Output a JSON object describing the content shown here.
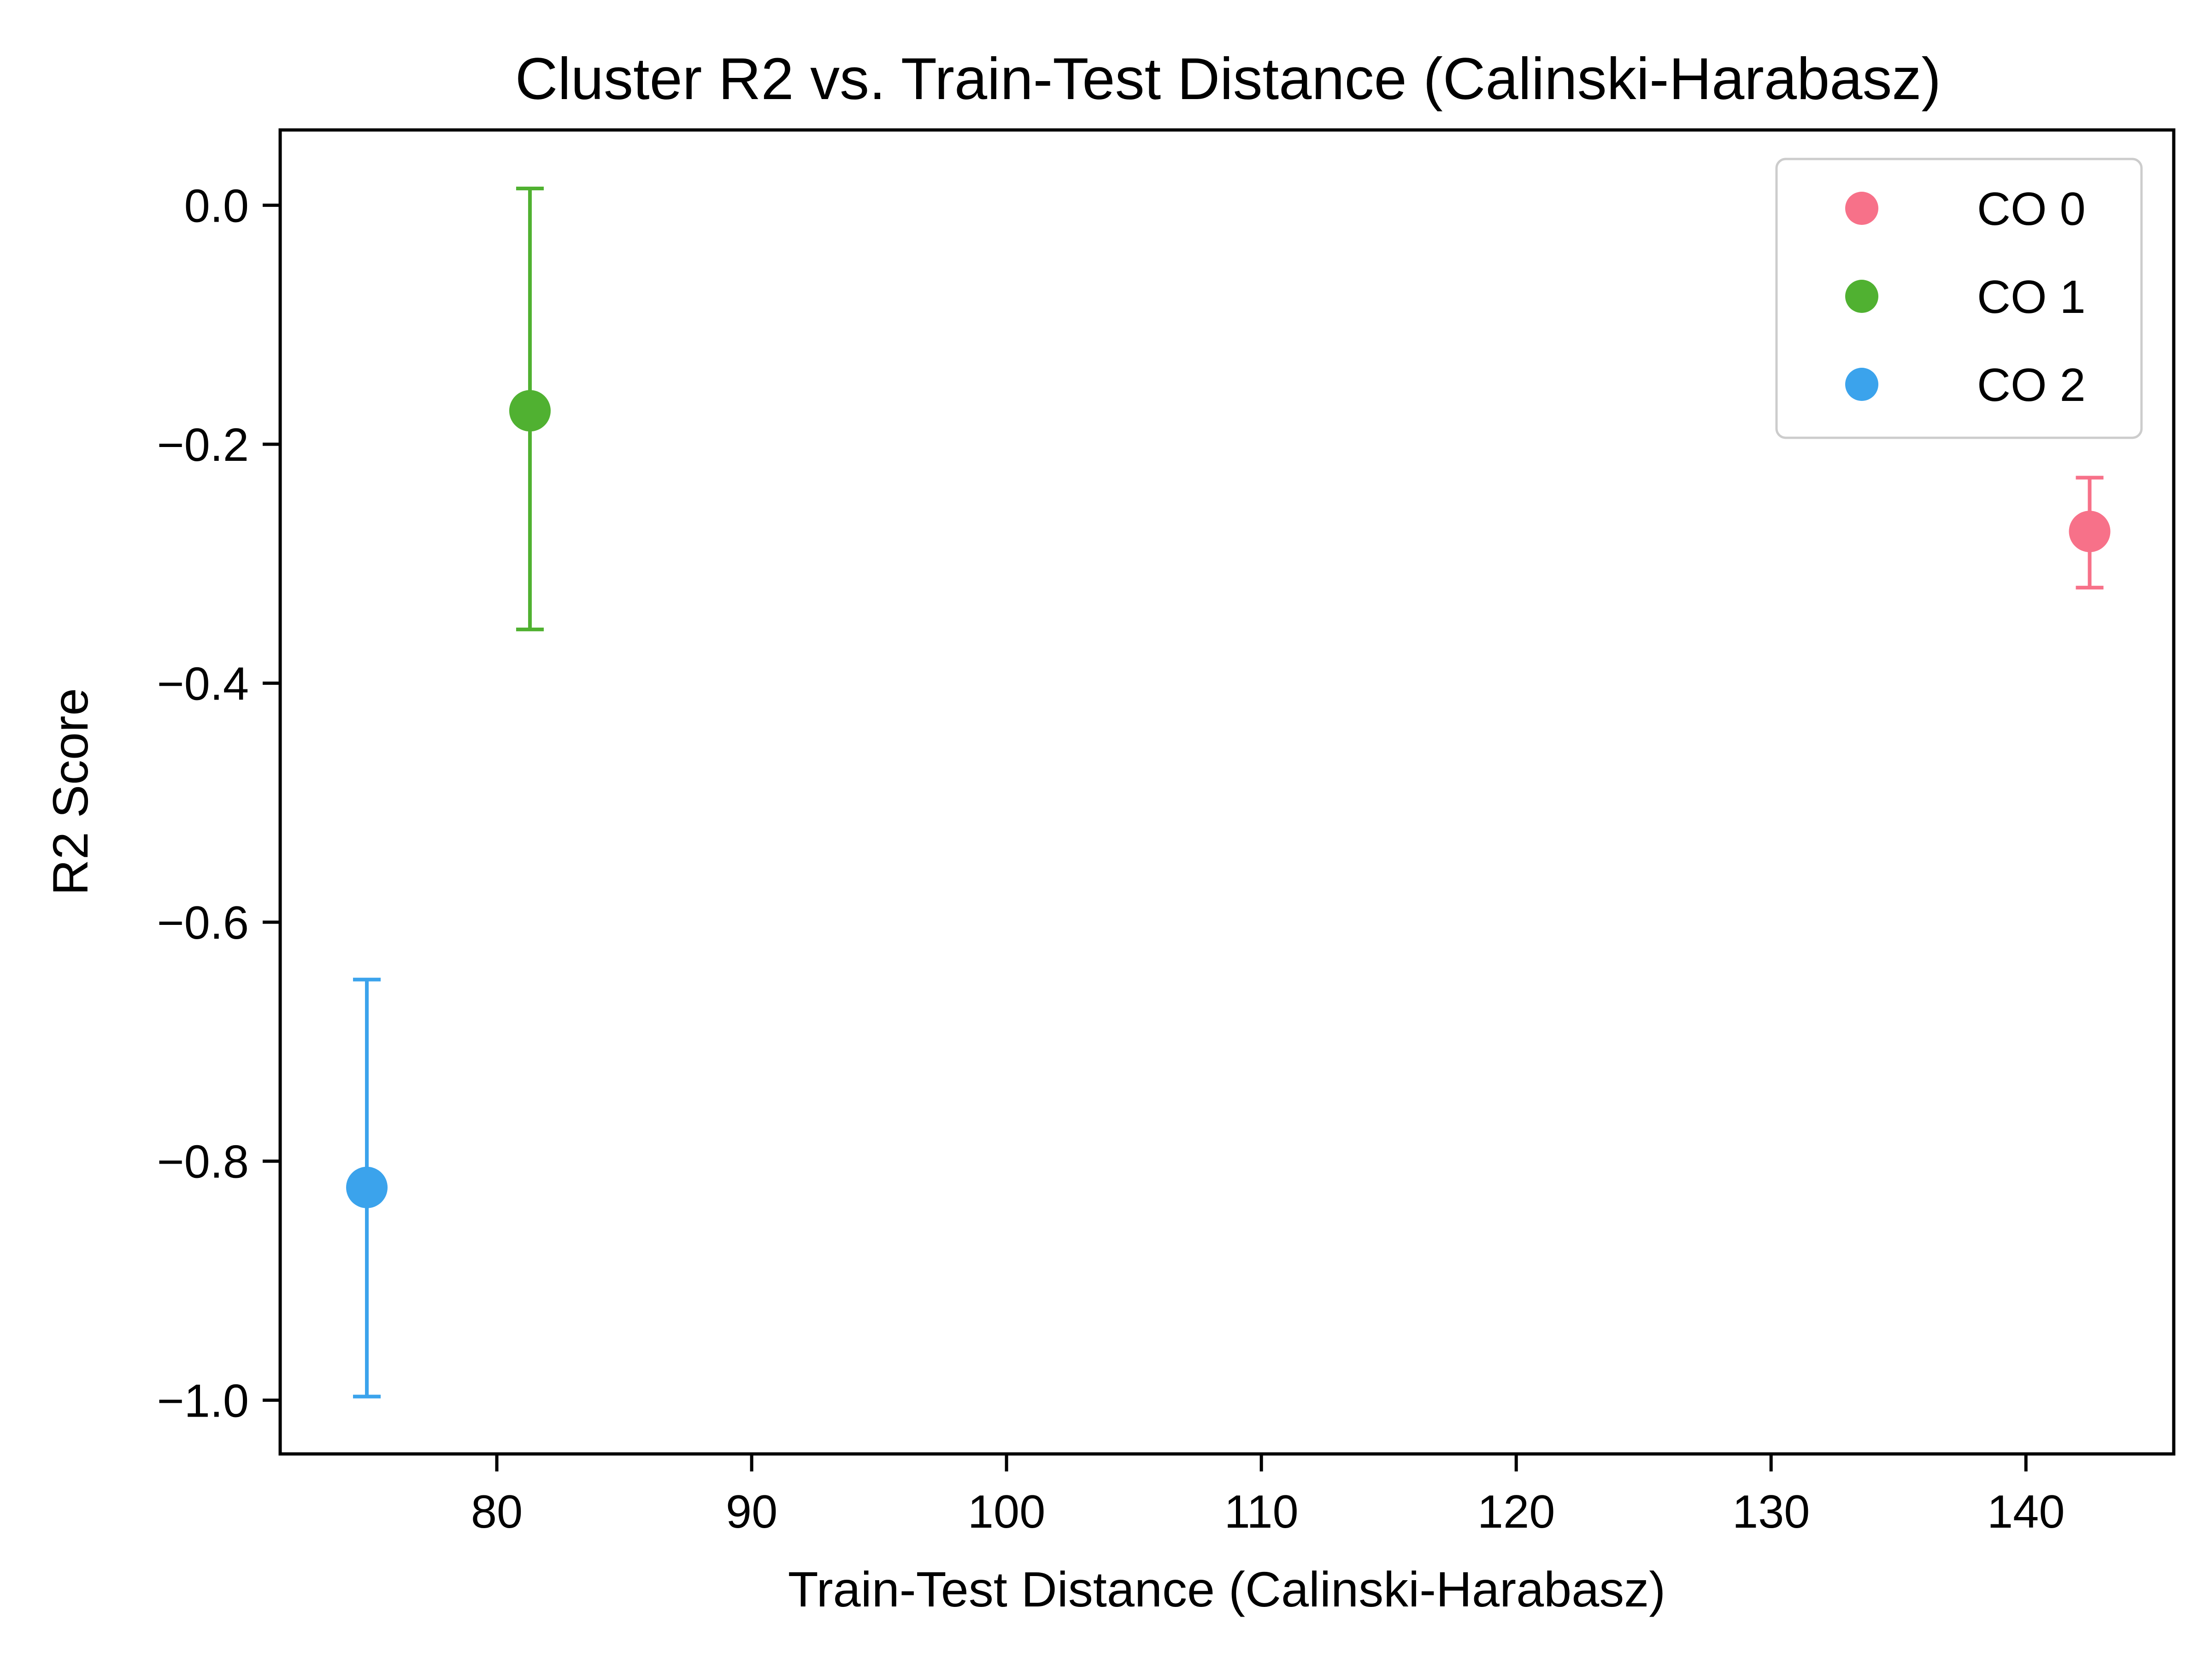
{
  "chart_data": {
    "type": "scatter",
    "title": "Cluster R2 vs. Train-Test Distance (Calinski-Harabasz)",
    "xlabel": "Train-Test Distance (Calinski-Harabasz)",
    "ylabel": "R2 Score",
    "xlim": [
      71.5,
      145.8
    ],
    "ylim": [
      -1.045,
      0.063
    ],
    "xticks": [
      80,
      90,
      100,
      110,
      120,
      130,
      140
    ],
    "yticks": [
      0.0,
      -0.2,
      -0.4,
      -0.6,
      -0.8,
      -1.0
    ],
    "ytick_labels": [
      "0.0",
      "−0.2",
      "−0.4",
      "−0.6",
      "−0.8",
      "−1.0"
    ],
    "grid": false,
    "legend_position": "top-right",
    "series": [
      {
        "name": "CO 0",
        "color": "#f77189",
        "x": 142.5,
        "y": -0.273,
        "err_low": -0.32,
        "err_high": -0.228
      },
      {
        "name": "CO 1",
        "color": "#50b131",
        "x": 81.3,
        "y": -0.172,
        "err_low": -0.355,
        "err_high": 0.014
      },
      {
        "name": "CO 2",
        "color": "#3ba3ec",
        "x": 74.9,
        "y": -0.822,
        "err_low": -0.997,
        "err_high": -0.648
      }
    ]
  }
}
